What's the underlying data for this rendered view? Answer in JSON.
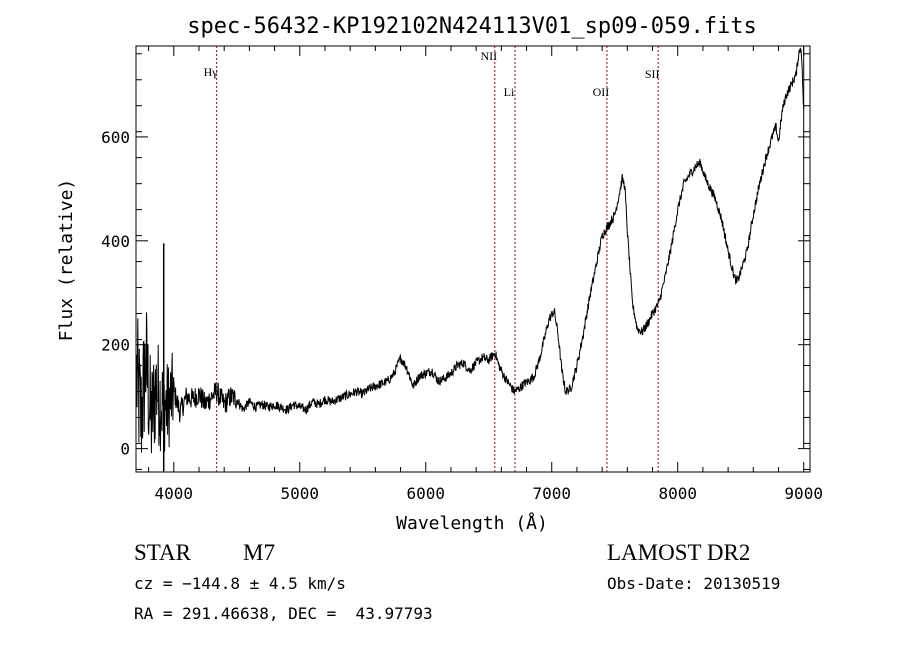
{
  "chart_data": {
    "type": "line",
    "title": "spec-56432-KP192102N424113V01_sp09-059.fits",
    "xlabel": "Wavelength (Å)",
    "ylabel": "Flux (relative)",
    "xlim": [
      3700,
      9050
    ],
    "ylim": [
      -45,
      775
    ],
    "x_ticks": [
      4000,
      5000,
      6000,
      7000,
      8000,
      9000
    ],
    "y_ticks": [
      0,
      200,
      400,
      600
    ],
    "grid": false,
    "line_color": "#000000",
    "marker_color": "#aa0000",
    "lines": [
      {
        "label": "Hγ",
        "wavelength": 4340
      },
      {
        "label": "NII",
        "wavelength": 6548
      },
      {
        "label": "Li",
        "wavelength": 6708
      },
      {
        "label": "OII",
        "wavelength": 7438
      },
      {
        "label": "SII",
        "wavelength": 7845
      }
    ],
    "spectrum": {
      "x": [
        3700,
        3740,
        3780,
        3820,
        3860,
        3900,
        3950,
        4000,
        4050,
        4100,
        4150,
        4200,
        4250,
        4300,
        4340,
        4400,
        4450,
        4500,
        4550,
        4600,
        4650,
        4700,
        4750,
        4800,
        4850,
        4900,
        4950,
        5000,
        5050,
        5100,
        5150,
        5200,
        5250,
        5300,
        5350,
        5400,
        5450,
        5500,
        5550,
        5600,
        5650,
        5700,
        5750,
        5800,
        5850,
        5900,
        5950,
        6000,
        6050,
        6100,
        6150,
        6200,
        6250,
        6300,
        6350,
        6400,
        6450,
        6500,
        6550,
        6580,
        6620,
        6660,
        6700,
        6740,
        6780,
        6820,
        6860,
        6900,
        6940,
        6980,
        7020,
        7050,
        7080,
        7110,
        7150,
        7200,
        7250,
        7300,
        7350,
        7400,
        7450,
        7500,
        7540,
        7560,
        7580,
        7600,
        7640,
        7680,
        7720,
        7760,
        7800,
        7850,
        7900,
        7950,
        8000,
        8050,
        8100,
        8150,
        8180,
        8220,
        8260,
        8300,
        8350,
        8400,
        8450,
        8470,
        8500,
        8550,
        8600,
        8650,
        8700,
        8750,
        8780,
        8800,
        8830,
        8860,
        8900,
        8940,
        8960,
        8980,
        9000
      ],
      "y": [
        150,
        60,
        170,
        50,
        120,
        90,
        80,
        110,
        70,
        100,
        95,
        105,
        85,
        100,
        110,
        85,
        100,
        95,
        75,
        90,
        80,
        85,
        80,
        85,
        80,
        75,
        85,
        80,
        75,
        90,
        85,
        95,
        90,
        95,
        100,
        105,
        110,
        105,
        115,
        120,
        125,
        130,
        145,
        175,
        155,
        120,
        140,
        145,
        150,
        130,
        135,
        145,
        160,
        165,
        150,
        165,
        175,
        170,
        185,
        160,
        140,
        125,
        110,
        115,
        125,
        130,
        140,
        170,
        210,
        250,
        265,
        220,
        150,
        110,
        115,
        160,
        220,
        290,
        350,
        410,
        430,
        450,
        495,
        520,
        505,
        420,
        280,
        230,
        225,
        240,
        260,
        280,
        330,
        390,
        460,
        510,
        530,
        545,
        550,
        520,
        500,
        480,
        440,
        380,
        330,
        320,
        340,
        380,
        450,
        510,
        560,
        600,
        620,
        590,
        650,
        680,
        700,
        720,
        760,
        775,
        650
      ]
    }
  },
  "info": {
    "object_class": "STAR",
    "subclass": "M7",
    "survey": "LAMOST DR2",
    "cz": "cz = −144.8 ± 4.5 km/s",
    "obs_date": "Obs-Date: 20130519",
    "coords": "RA = 291.46638, DEC =  43.97793"
  }
}
